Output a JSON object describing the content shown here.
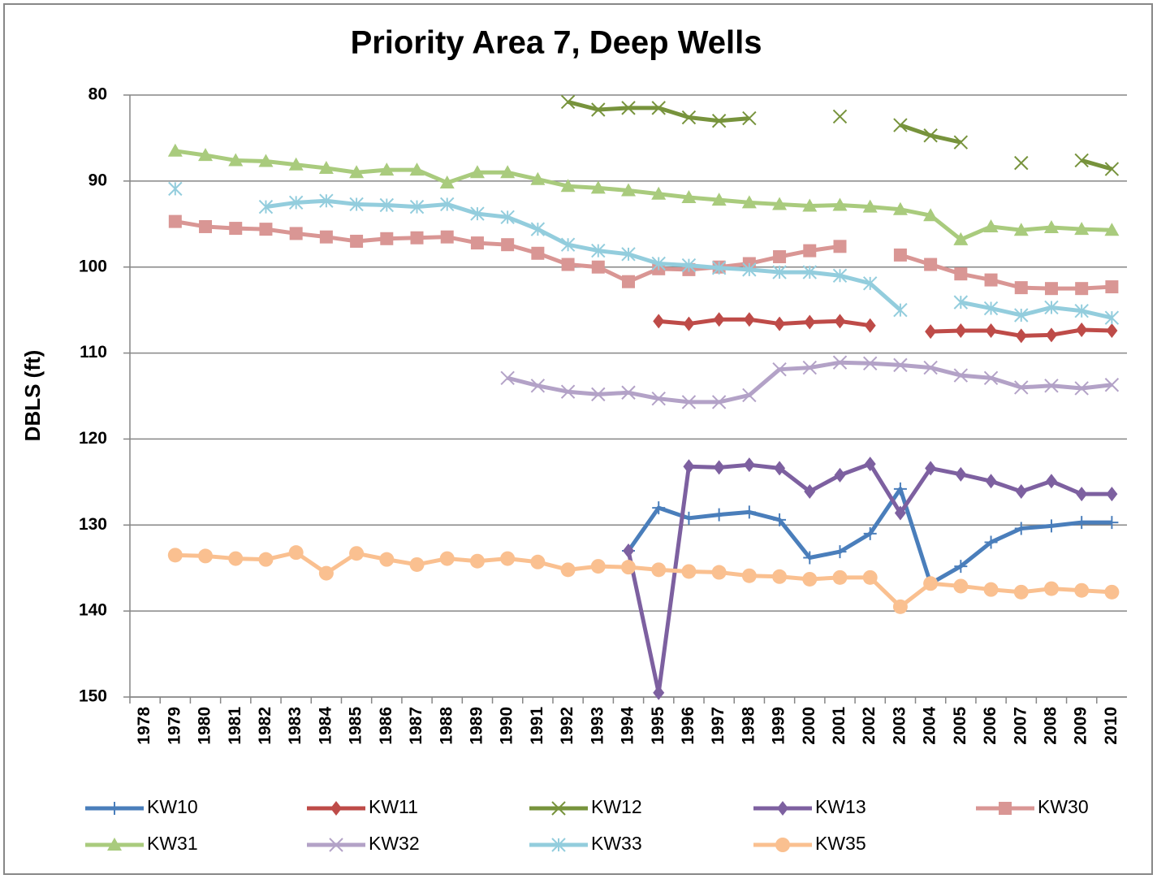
{
  "chart_data": {
    "type": "line",
    "title": "Priority Area 7, Deep Wells",
    "y_label": "DBLS (ft)",
    "categories": [
      "1978",
      "1979",
      "1980",
      "1981",
      "1982",
      "1983",
      "1984",
      "1985",
      "1986",
      "1987",
      "1988",
      "1989",
      "1990",
      "1991",
      "1992",
      "1993",
      "1994",
      "1995",
      "1996",
      "1997",
      "1998",
      "1999",
      "2000",
      "2001",
      "2002",
      "2003",
      "2004",
      "2005",
      "2006",
      "2007",
      "2008",
      "2009",
      "2010"
    ],
    "ylim": [
      80,
      150
    ],
    "yticks": [
      80,
      90,
      100,
      110,
      120,
      130,
      140,
      150
    ],
    "y_reversed": true,
    "grid": true,
    "legend": "bottom",
    "series": [
      {
        "name": "KW10",
        "color": "#4a7ebb",
        "marker": "plus",
        "values": [
          null,
          null,
          null,
          null,
          null,
          null,
          null,
          null,
          null,
          null,
          null,
          null,
          null,
          null,
          null,
          null,
          133.0,
          128.0,
          129.2,
          128.8,
          128.5,
          129.4,
          133.8,
          133.1,
          131.0,
          125.8,
          136.8,
          134.8,
          132.0,
          130.4,
          130.1,
          129.7,
          129.7
        ]
      },
      {
        "name": "KW11",
        "color": "#be4b48",
        "marker": "diamond",
        "values": [
          null,
          null,
          null,
          null,
          null,
          null,
          null,
          null,
          null,
          null,
          null,
          null,
          null,
          null,
          null,
          null,
          null,
          106.3,
          106.6,
          106.1,
          106.1,
          106.6,
          106.4,
          106.3,
          106.8,
          null,
          107.5,
          107.4,
          107.4,
          108.0,
          107.9,
          107.3,
          107.4
        ]
      },
      {
        "name": "KW12",
        "color": "#77933c",
        "marker": "x",
        "values": [
          null,
          null,
          null,
          null,
          null,
          null,
          null,
          null,
          null,
          null,
          null,
          null,
          null,
          null,
          80.8,
          81.7,
          81.5,
          81.5,
          82.6,
          83.0,
          82.7,
          null,
          null,
          82.5,
          null,
          83.5,
          84.7,
          85.5,
          null,
          87.9,
          null,
          87.6,
          88.6
        ]
      },
      {
        "name": "KW13",
        "color": "#7d60a0",
        "marker": "diamond",
        "values": [
          null,
          null,
          null,
          null,
          null,
          null,
          null,
          null,
          null,
          null,
          null,
          null,
          null,
          null,
          null,
          null,
          133.0,
          149.5,
          123.2,
          123.3,
          123.0,
          123.4,
          126.1,
          124.2,
          122.9,
          128.6,
          123.4,
          124.1,
          124.9,
          126.1,
          124.9,
          126.4,
          126.4
        ]
      },
      {
        "name": "KW30",
        "color": "#d99694",
        "marker": "square",
        "values": [
          null,
          94.7,
          95.3,
          95.5,
          95.6,
          96.1,
          96.5,
          97.0,
          96.7,
          96.6,
          96.5,
          97.2,
          97.4,
          98.4,
          99.7,
          100.0,
          101.7,
          100.2,
          100.3,
          100.0,
          99.6,
          98.8,
          98.1,
          97.6,
          null,
          98.6,
          99.7,
          100.8,
          101.5,
          102.4,
          102.5,
          102.5,
          102.3
        ]
      },
      {
        "name": "KW31",
        "color": "#a9cb7d",
        "marker": "triangle",
        "values": [
          null,
          86.5,
          87.0,
          87.6,
          87.7,
          88.1,
          88.5,
          89.0,
          88.7,
          88.7,
          90.2,
          89.0,
          89.0,
          89.8,
          90.6,
          90.8,
          91.1,
          91.5,
          91.9,
          92.2,
          92.5,
          92.7,
          92.9,
          92.8,
          93.0,
          93.3,
          94.0,
          96.8,
          95.3,
          95.7,
          95.4,
          95.6,
          95.7
        ]
      },
      {
        "name": "KW32",
        "color": "#b3a2c7",
        "marker": "x",
        "values": [
          null,
          null,
          null,
          null,
          null,
          null,
          null,
          null,
          null,
          null,
          null,
          null,
          112.9,
          113.8,
          114.5,
          114.8,
          114.6,
          115.3,
          115.7,
          115.7,
          114.9,
          111.9,
          111.7,
          111.1,
          111.2,
          111.4,
          111.7,
          112.6,
          112.9,
          114.0,
          113.8,
          114.1,
          113.7
        ]
      },
      {
        "name": "KW33",
        "color": "#93cddd",
        "marker": "asterisk",
        "values": [
          null,
          90.9,
          null,
          null,
          93.0,
          92.5,
          92.3,
          92.7,
          92.8,
          93.0,
          92.7,
          93.8,
          94.2,
          95.6,
          97.4,
          98.1,
          98.5,
          99.6,
          99.8,
          100.1,
          100.3,
          100.6,
          100.6,
          101.0,
          101.9,
          105.0,
          null,
          104.1,
          104.8,
          105.6,
          104.7,
          105.1,
          105.9
        ]
      },
      {
        "name": "KW35",
        "color": "#fac090",
        "marker": "circle",
        "values": [
          null,
          133.5,
          133.6,
          133.9,
          134.0,
          133.2,
          135.6,
          133.3,
          134.0,
          134.6,
          133.9,
          134.2,
          133.9,
          134.3,
          135.2,
          134.8,
          134.9,
          135.2,
          135.4,
          135.5,
          135.9,
          136.0,
          136.3,
          136.1,
          136.1,
          139.5,
          136.8,
          137.1,
          137.5,
          137.8,
          137.4,
          137.6,
          137.8
        ]
      }
    ]
  }
}
